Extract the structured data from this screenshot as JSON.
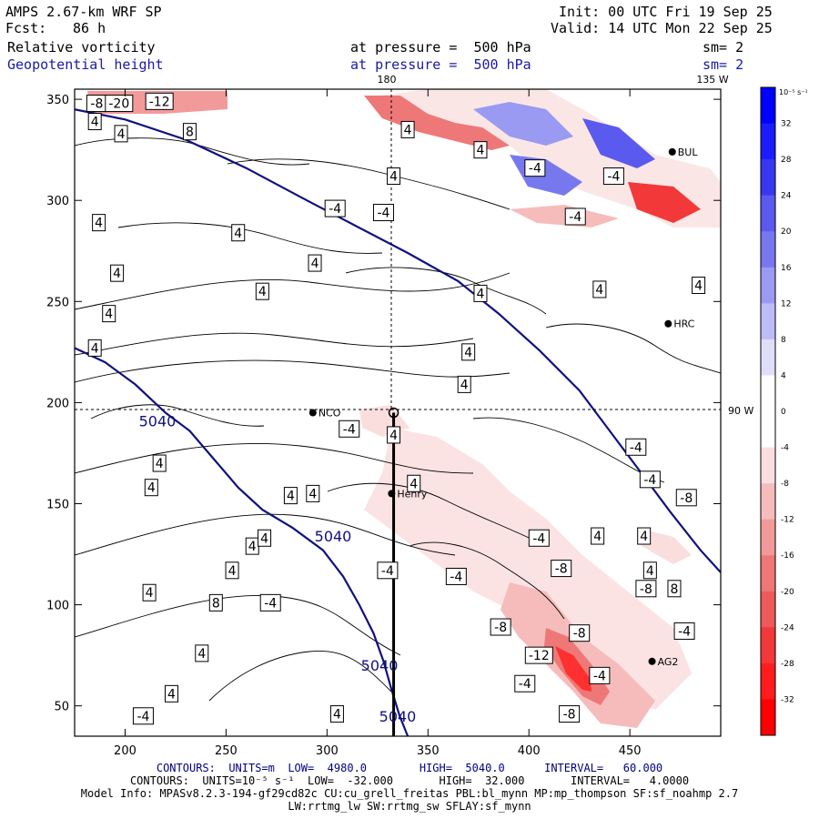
{
  "header": {
    "model": "AMPS 2.67-km WRF SP",
    "fcst_label": "Fcst:",
    "fcst_value": "86 h",
    "init": "Init: 00 UTC Fri 19 Sep 25",
    "valid": "Valid: 14 UTC Mon 22 Sep 25",
    "field1": "Relative vorticity",
    "field2": "Geopotential height",
    "level1": "at pressure =  500 hPa",
    "level2": "at pressure =  500 hPa",
    "smooth1": "sm= 2",
    "smooth2": "sm= 2"
  },
  "map_labels": {
    "lon_180": "180",
    "lon_135w": "135 W",
    "lon_90w": "90 W"
  },
  "stations": [
    {
      "name": "NCO",
      "x": 293,
      "y": 195
    },
    {
      "name": "Henry",
      "x": 332,
      "y": 155
    },
    {
      "name": "AG2",
      "x": 461,
      "y": 72
    },
    {
      "name": "HRC",
      "x": 469,
      "y": 239
    },
    {
      "name": "BUL",
      "x": 471,
      "y": 324
    }
  ],
  "cross_section": {
    "x": 333,
    "y_start": 195,
    "y_end": 35
  },
  "chart_data": {
    "type": "heatmap",
    "title": "Relative vorticity / Geopotential height at 500 hPa",
    "xlim": [
      175,
      495
    ],
    "ylim": [
      35,
      355
    ],
    "xticks": [
      200,
      250,
      300,
      350,
      400,
      450
    ],
    "yticks": [
      50,
      100,
      150,
      200,
      250,
      300,
      350
    ],
    "colorbar": {
      "units_label": "10⁻⁵ s⁻¹",
      "ticks": [
        32,
        28,
        24,
        20,
        16,
        12,
        8,
        4,
        0,
        -4,
        -8,
        -12,
        -16,
        -20,
        -24,
        -28,
        -32
      ],
      "colors": [
        "#0000ff",
        "#1c1cff",
        "#3838f2",
        "#5a5aee",
        "#7878ee",
        "#9a9af2",
        "#bcbcf6",
        "#dedefa",
        "#ffffff",
        "#ffffff",
        "#fadede",
        "#f6bcbc",
        "#f29a9a",
        "#ee7878",
        "#ee5a5a",
        "#f23838",
        "#ff1c1c",
        "#ff0000"
      ]
    },
    "height_contours": [
      {
        "label": "5040",
        "points": [
          [
            175,
            345
          ],
          [
            200,
            340
          ],
          [
            230,
            330
          ],
          [
            260,
            316
          ],
          [
            290,
            300
          ],
          [
            315,
            287
          ],
          [
            340,
            274
          ],
          [
            365,
            260
          ],
          [
            385,
            244
          ],
          [
            405,
            226
          ],
          [
            425,
            206
          ],
          [
            440,
            186
          ],
          [
            455,
            166
          ],
          [
            470,
            146
          ],
          [
            485,
            127
          ],
          [
            495,
            116
          ]
        ]
      },
      {
        "label": "5040",
        "points": [
          [
            175,
            227
          ],
          [
            190,
            220
          ],
          [
            205,
            209
          ],
          [
            220,
            195
          ],
          [
            232,
            186
          ],
          [
            244,
            172
          ],
          [
            256,
            158
          ],
          [
            268,
            147
          ],
          [
            283,
            138
          ],
          [
            298,
            127
          ],
          [
            308,
            114
          ],
          [
            316,
            100
          ],
          [
            323,
            86
          ],
          [
            328,
            72
          ],
          [
            332,
            58
          ],
          [
            336,
            45
          ],
          [
            340,
            35
          ]
        ]
      }
    ],
    "height_contour_labels": [
      {
        "text": "5040",
        "x": 216,
        "y": 191
      },
      {
        "text": "5040",
        "x": 303,
        "y": 134
      },
      {
        "text": "5040",
        "x": 326,
        "y": 70
      },
      {
        "text": "5040",
        "x": 335,
        "y": 45
      }
    ],
    "vorticity_labels": [
      {
        "text": "-8",
        "x": 186,
        "y": 348
      },
      {
        "text": "-20",
        "x": 197,
        "y": 348
      },
      {
        "text": "-12",
        "x": 217,
        "y": 349
      },
      {
        "text": "4",
        "x": 185,
        "y": 339
      },
      {
        "text": "4",
        "x": 198,
        "y": 333
      },
      {
        "text": "8",
        "x": 232,
        "y": 334
      },
      {
        "text": "4",
        "x": 340,
        "y": 335
      },
      {
        "text": "4",
        "x": 376,
        "y": 325
      },
      {
        "text": "4",
        "x": 333,
        "y": 312
      },
      {
        "text": "-4",
        "x": 403,
        "y": 316
      },
      {
        "text": "-4",
        "x": 442,
        "y": 312
      },
      {
        "text": "-4",
        "x": 423,
        "y": 292
      },
      {
        "text": "-4",
        "x": 304,
        "y": 296
      },
      {
        "text": "-4",
        "x": 328,
        "y": 294
      },
      {
        "text": "4",
        "x": 187,
        "y": 289
      },
      {
        "text": "4",
        "x": 256,
        "y": 284
      },
      {
        "text": "4",
        "x": 294,
        "y": 269
      },
      {
        "text": "4",
        "x": 196,
        "y": 264
      },
      {
        "text": "4",
        "x": 268,
        "y": 255
      },
      {
        "text": "4",
        "x": 376,
        "y": 254
      },
      {
        "text": "4",
        "x": 435,
        "y": 256
      },
      {
        "text": "4",
        "x": 484,
        "y": 258
      },
      {
        "text": "4",
        "x": 192,
        "y": 244
      },
      {
        "text": "4",
        "x": 185,
        "y": 227
      },
      {
        "text": "4",
        "x": 370,
        "y": 225
      },
      {
        "text": "4",
        "x": 368,
        "y": 209
      },
      {
        "text": "-4",
        "x": 311,
        "y": 187
      },
      {
        "text": "4",
        "x": 333,
        "y": 184
      },
      {
        "text": "4",
        "x": 217,
        "y": 170
      },
      {
        "text": "4",
        "x": 213,
        "y": 158
      },
      {
        "text": "4",
        "x": 282,
        "y": 154
      },
      {
        "text": "4",
        "x": 293,
        "y": 155
      },
      {
        "text": "4",
        "x": 343,
        "y": 160
      },
      {
        "text": "-4",
        "x": 453,
        "y": 178
      },
      {
        "text": "-4",
        "x": 460,
        "y": 162
      },
      {
        "text": "-8",
        "x": 478,
        "y": 153
      },
      {
        "text": "-4",
        "x": 405,
        "y": 133
      },
      {
        "text": "4",
        "x": 434,
        "y": 134
      },
      {
        "text": "4",
        "x": 457,
        "y": 134
      },
      {
        "text": "4",
        "x": 263,
        "y": 129
      },
      {
        "text": "4",
        "x": 269,
        "y": 133
      },
      {
        "text": "4",
        "x": 253,
        "y": 117
      },
      {
        "text": "-4",
        "x": 330,
        "y": 117
      },
      {
        "text": "-4",
        "x": 364,
        "y": 114
      },
      {
        "text": "-8",
        "x": 416,
        "y": 118
      },
      {
        "text": "4",
        "x": 460,
        "y": 117
      },
      {
        "text": "8",
        "x": 245,
        "y": 101
      },
      {
        "text": "-4",
        "x": 272,
        "y": 101
      },
      {
        "text": "4",
        "x": 212,
        "y": 106
      },
      {
        "text": "-8",
        "x": 458,
        "y": 108
      },
      {
        "text": "8",
        "x": 472,
        "y": 108
      },
      {
        "text": "-8",
        "x": 386,
        "y": 89
      },
      {
        "text": "-8",
        "x": 425,
        "y": 86
      },
      {
        "text": "-4",
        "x": 477,
        "y": 87
      },
      {
        "text": "4",
        "x": 238,
        "y": 76
      },
      {
        "text": "-12",
        "x": 405,
        "y": 75
      },
      {
        "text": "-4",
        "x": 435,
        "y": 65
      },
      {
        "text": "4",
        "x": 223,
        "y": 56
      },
      {
        "text": "-4",
        "x": 398,
        "y": 61
      },
      {
        "text": "-8",
        "x": 420,
        "y": 46
      },
      {
        "text": "-4",
        "x": 209,
        "y": 45
      },
      {
        "text": "4",
        "x": 305,
        "y": 46
      }
    ]
  },
  "footer": {
    "contours1": "CONTOURS:  UNITS=m  LOW=  4980.0        HIGH=  5040.0      INTERVAL=   60.000",
    "contours2": "CONTOURS:  UNITS=10⁻⁵ s⁻¹  LOW=  -32.000       HIGH=  32.000       INTERVAL=   4.0000",
    "model_info": "Model Info: MPASv8.2.3-194-gf29cd82c CU:cu_grell_freitas PBL:bl_mynn MP:mp_thompson SF:sf_noahmp 2.7",
    "physics": "LW:rrtmg_lw SW:rrtmg_sw SFLAY:sf_mynn"
  }
}
